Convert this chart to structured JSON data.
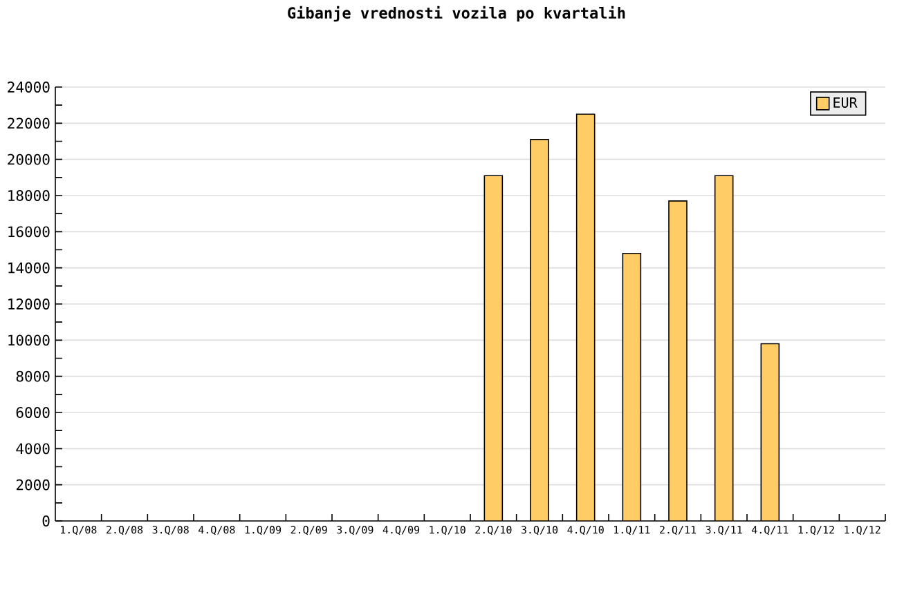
{
  "chart_data": {
    "type": "bar",
    "title": "Gibanje vrednosti vozila po kvartalih",
    "categories": [
      "1.Q/08",
      "2.Q/08",
      "3.Q/08",
      "4.Q/08",
      "1.Q/09",
      "2.Q/09",
      "3.Q/09",
      "4.Q/09",
      "1.Q/10",
      "2.Q/10",
      "3.Q/10",
      "4.Q/10",
      "1.Q/11",
      "2.Q/11",
      "3.Q/11",
      "4.Q/11",
      "1.Q/12",
      "1.Q/12"
    ],
    "series": [
      {
        "name": "EUR",
        "color": "#ffcc66",
        "values": [
          null,
          null,
          null,
          null,
          null,
          null,
          null,
          null,
          null,
          19100,
          21100,
          22500,
          14800,
          17700,
          19100,
          9800,
          null,
          null
        ]
      }
    ],
    "ylim": [
      0,
      24000
    ],
    "yticks": [
      0,
      2000,
      4000,
      6000,
      8000,
      10000,
      12000,
      14000,
      16000,
      18000,
      20000,
      22000,
      24000
    ],
    "grid": "y",
    "legend": "top right"
  }
}
